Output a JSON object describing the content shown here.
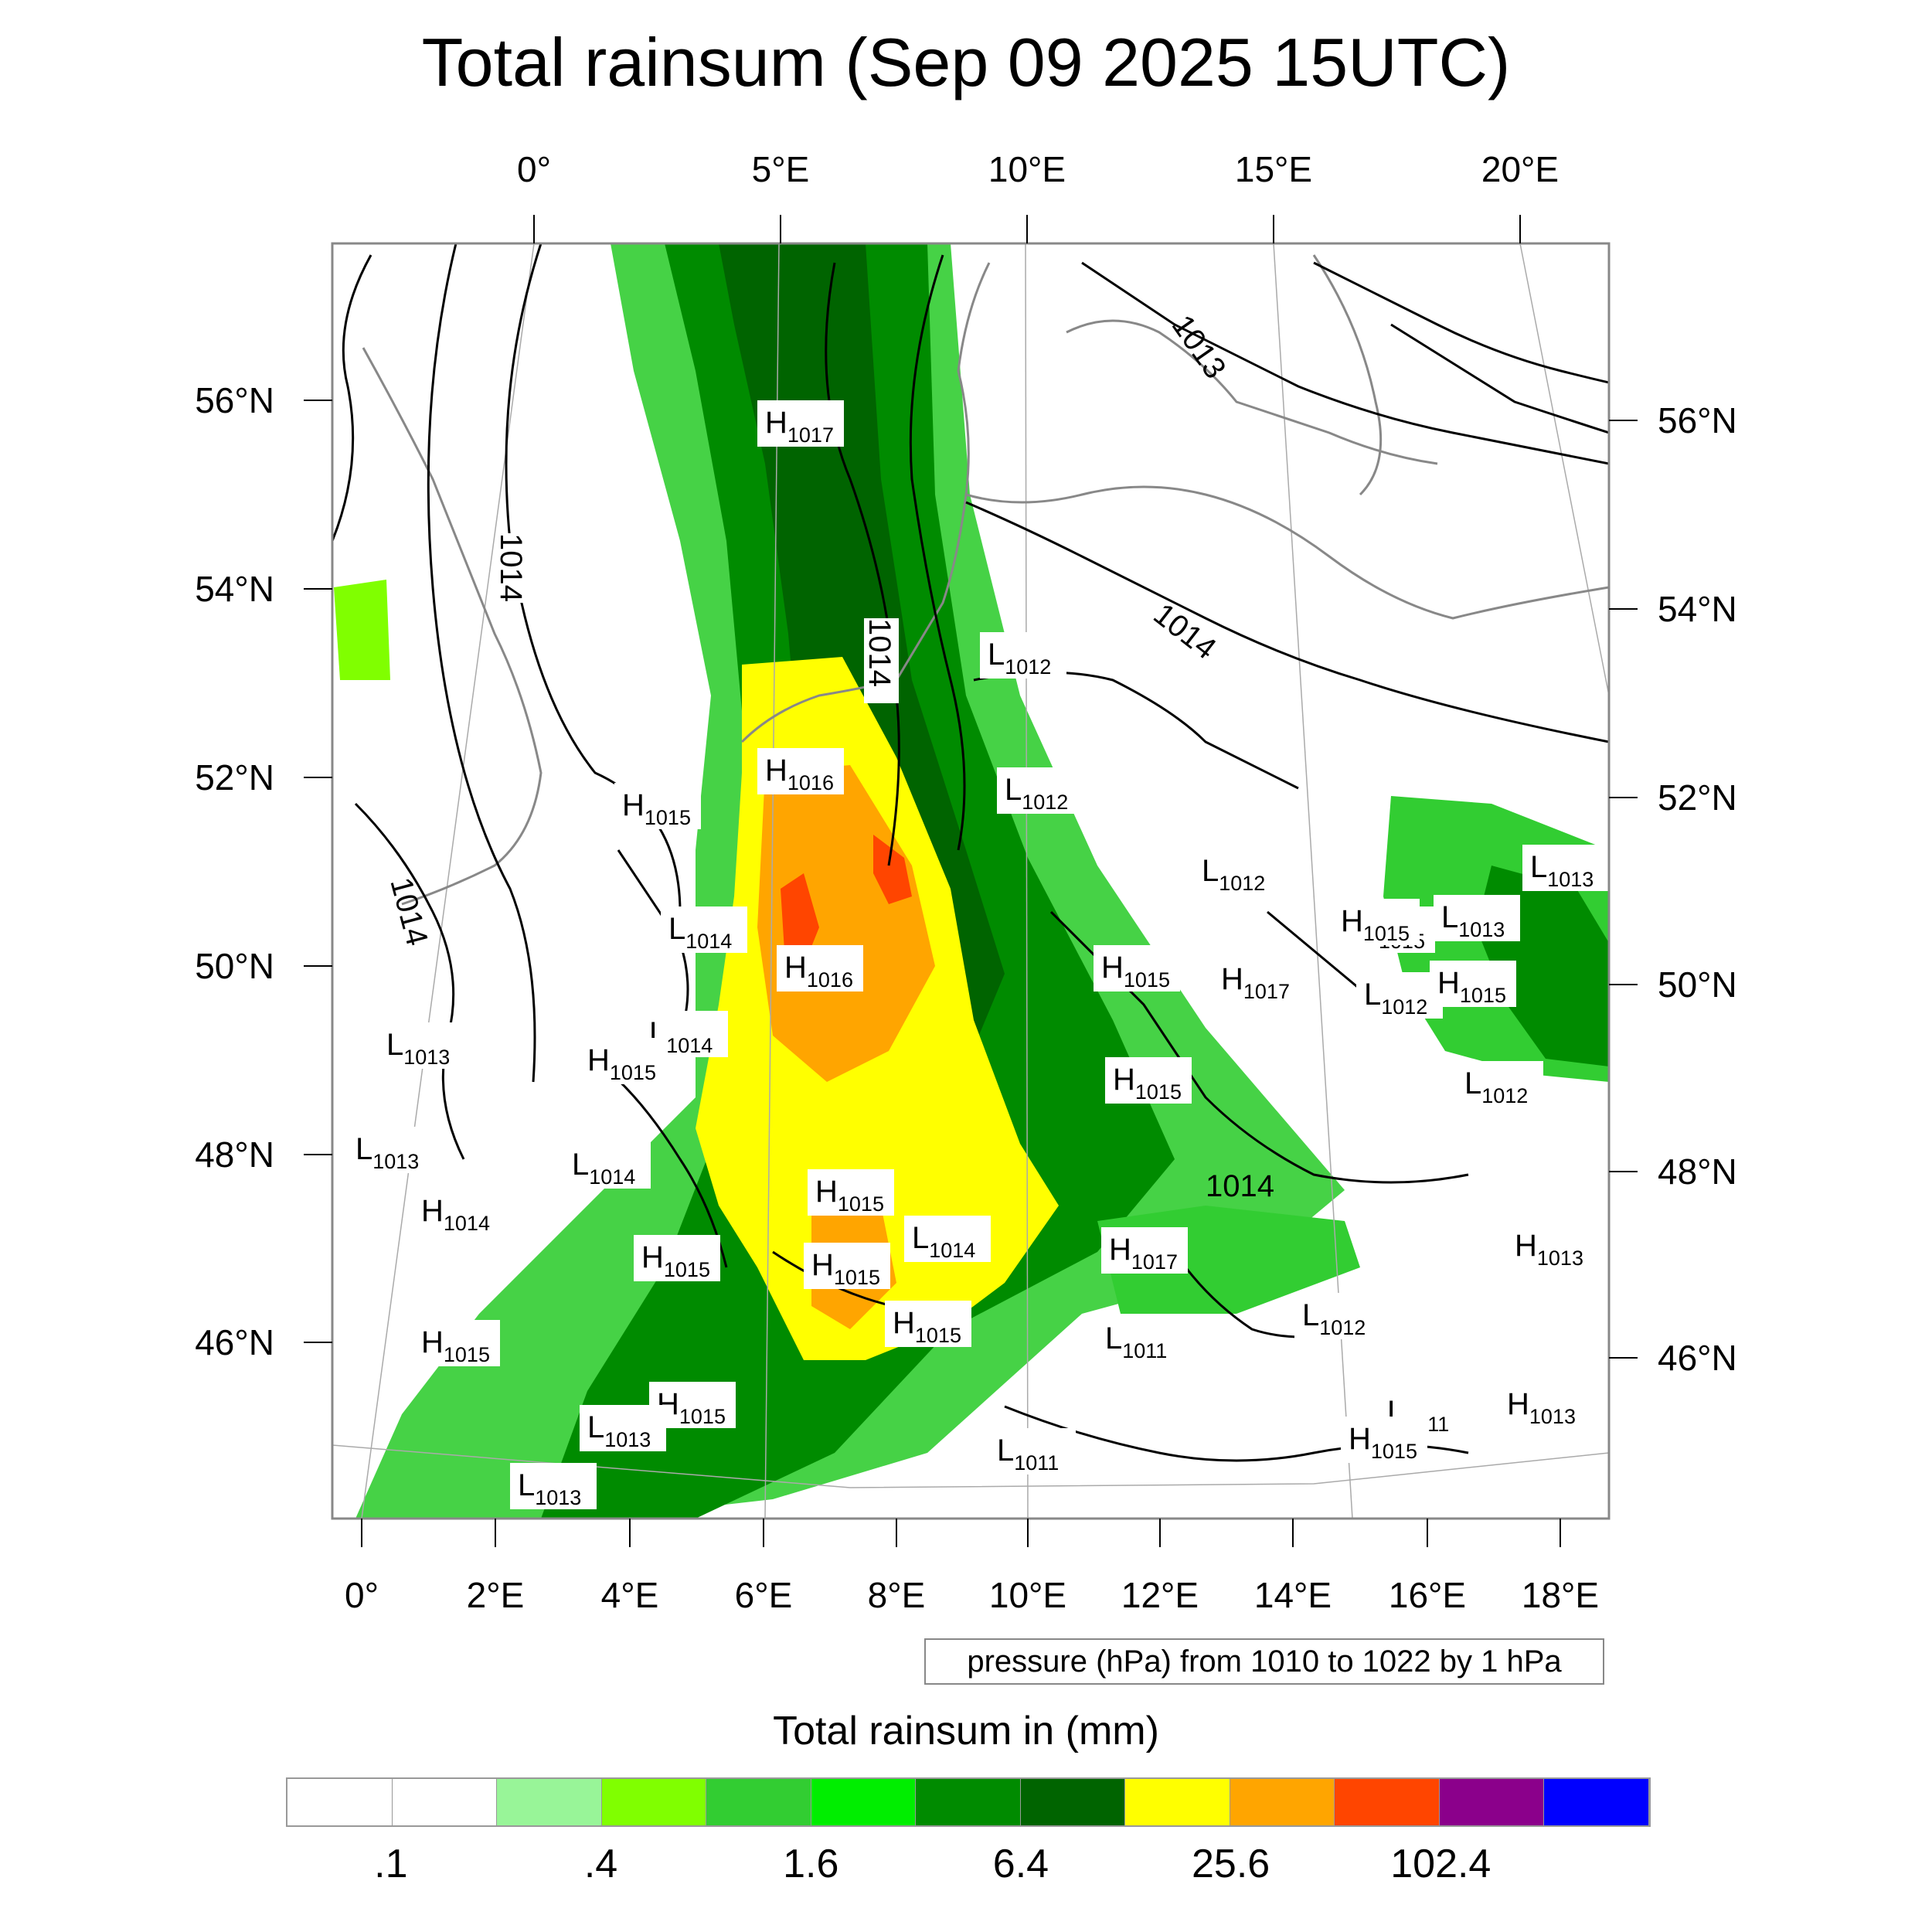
{
  "title": "Total rainsum (Sep 09 2025 15UTC)",
  "axes": {
    "top_lon_labels": [
      "0°",
      "5°E",
      "10°E",
      "15°E",
      "20°E"
    ],
    "bottom_lon_labels": [
      "0°",
      "2°E",
      "4°E",
      "6°E",
      "8°E",
      "10°E",
      "12°E",
      "14°E",
      "16°E",
      "18°E"
    ],
    "left_lat_labels": [
      "56°N",
      "54°N",
      "52°N",
      "50°N",
      "48°N",
      "46°N"
    ],
    "right_lat_labels": [
      "56°N",
      "54°N",
      "52°N",
      "50°N",
      "48°N",
      "46°N"
    ]
  },
  "isobar_labels": [
    "1014",
    "1014",
    "1013",
    "1014",
    "1014",
    "1014"
  ],
  "pressure_centers": [
    {
      "type": "H",
      "value": "1017"
    },
    {
      "type": "H",
      "value": "1016"
    },
    {
      "type": "H",
      "value": "1015"
    },
    {
      "type": "L",
      "value": "1012"
    },
    {
      "type": "L",
      "value": "1012"
    },
    {
      "type": "L",
      "value": "1012"
    },
    {
      "type": "L",
      "value": "1014"
    },
    {
      "type": "H",
      "value": "1016"
    },
    {
      "type": "L",
      "value": "1013"
    },
    {
      "type": "L",
      "value": "1014"
    },
    {
      "type": "H",
      "value": "1015"
    },
    {
      "type": "L",
      "value": "1013"
    },
    {
      "type": "L",
      "value": "1014"
    },
    {
      "type": "H",
      "value": "1014"
    },
    {
      "type": "H",
      "value": "1015"
    },
    {
      "type": "H",
      "value": "1015"
    },
    {
      "type": "H",
      "value": "1015"
    },
    {
      "type": "H",
      "value": "1015"
    },
    {
      "type": "H",
      "value": "1015"
    },
    {
      "type": "H",
      "value": "1015"
    },
    {
      "type": "H",
      "value": "1017"
    },
    {
      "type": "H",
      "value": "1017"
    },
    {
      "type": "L",
      "value": "1012"
    },
    {
      "type": "L",
      "value": "1011"
    },
    {
      "type": "L",
      "value": "1013"
    },
    {
      "type": "H",
      "value": "1015"
    },
    {
      "type": "L",
      "value": "1013"
    },
    {
      "type": "H",
      "value": "1015"
    },
    {
      "type": "L",
      "value": "1012"
    },
    {
      "type": "H",
      "value": "1015"
    },
    {
      "type": "L",
      "value": "1012"
    },
    {
      "type": "H",
      "value": "1013"
    },
    {
      "type": "L",
      "value": "1011"
    },
    {
      "type": "L",
      "value": "1011"
    },
    {
      "type": "H",
      "value": "1015"
    },
    {
      "type": "H",
      "value": "1013"
    },
    {
      "type": "H",
      "value": "1015"
    },
    {
      "type": "L",
      "value": "1013"
    },
    {
      "type": "H",
      "value": "1015"
    },
    {
      "type": "L",
      "value": "1014"
    },
    {
      "type": "L",
      "value": "1013"
    }
  ],
  "contour_info": "pressure (hPa) from 1010 to 1022 by 1 hPa",
  "legend": {
    "title": "Total rainsum in (mm)",
    "colors": [
      "#ffffff",
      "#ffffff",
      "#98f598",
      "#80ff00",
      "#32cd32",
      "#00ee00",
      "#008b00",
      "#006400",
      "#ffff00",
      "#ffa500",
      "#ff4500",
      "#8b008b",
      "#0000ff"
    ],
    "tick_labels": [
      ".1",
      ".4",
      "1.6",
      "6.4",
      "25.6",
      "102.4"
    ]
  }
}
